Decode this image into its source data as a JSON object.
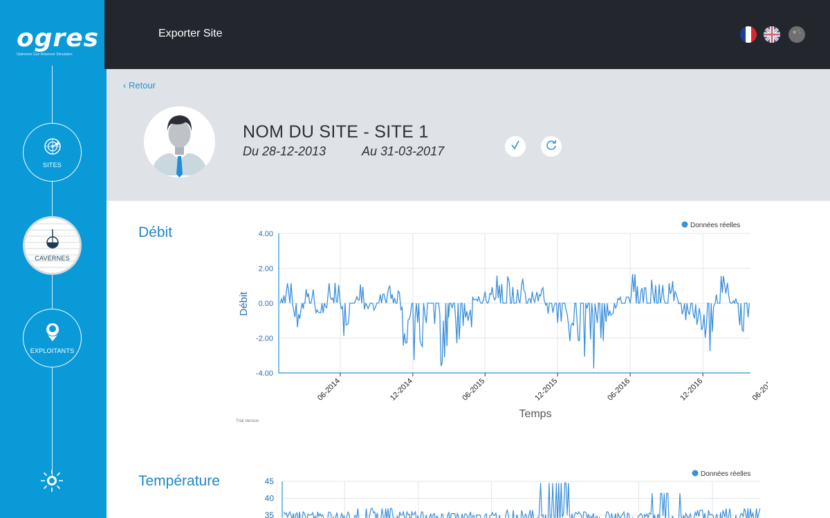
{
  "sidebar": {
    "logo_text": "ogres",
    "logo_subtitle": "Optimisée Gaz Réservoir Simulation",
    "items": [
      {
        "label": "SITES",
        "icon": "radar-icon",
        "active": false
      },
      {
        "label": "CAVERNES",
        "icon": "cavern-icon",
        "active": true
      },
      {
        "label": "EXPLOITANTS",
        "icon": "user-icon",
        "active": false
      }
    ],
    "bottom_icon": "sun-icon"
  },
  "topbar": {
    "title": "Exporter Site",
    "languages": [
      "fr-flag-icon",
      "uk-flag-icon",
      "cn-flag-icon"
    ]
  },
  "header": {
    "back_label": "Retour",
    "site_name": "NOM DU SITE - SITE 1",
    "date_from": "Du 28-12-2013",
    "date_to": "Au 31-03-2017",
    "accent": "#2a92cf"
  },
  "charts": {
    "trial_label": "Trial Version"
  },
  "chart_data": [
    {
      "type": "line",
      "section_title": "Débit",
      "title": "",
      "xlabel": "Temps",
      "ylabel": "Débit",
      "legend": "Données réelles",
      "legend_position": "top-right",
      "x_ticks": [
        "06-2014",
        "12-2014",
        "06-2015",
        "12-2015",
        "06-2016",
        "12-2016",
        "06-2017"
      ],
      "y_ticks": [
        "4.00",
        "2.00",
        "0.00",
        "-2.00",
        "-4.00"
      ],
      "ylim": [
        -4,
        4
      ],
      "xlim": [
        "2013-12-28",
        "2017-03-31"
      ],
      "grid": true,
      "color": "#3a8fdb",
      "series": [
        {
          "x": [
            "2014-01",
            "2014-02",
            "2014-03",
            "2014-04",
            "2014-05",
            "2014-06",
            "2014-07",
            "2014-08",
            "2014-09",
            "2014-10",
            "2014-11",
            "2014-12",
            "2015-01",
            "2015-02",
            "2015-03",
            "2015-04",
            "2015-05",
            "2015-06",
            "2015-07",
            "2015-08",
            "2015-09",
            "2015-10",
            "2015-11",
            "2015-12",
            "2016-01",
            "2016-02",
            "2016-03",
            "2016-04",
            "2016-05",
            "2016-06",
            "2016-07",
            "2016-08",
            "2016-09",
            "2016-10",
            "2016-11",
            "2016-12",
            "2017-01",
            "2017-02",
            "2017-03"
          ],
          "values": [
            1.2,
            -1.4,
            0.9,
            -0.6,
            1.2,
            -2.0,
            1.1,
            -0.8,
            0.8,
            1.0,
            -2.6,
            -3.7,
            -1.8,
            -3.6,
            -2.3,
            -1.5,
            0.4,
            1.0,
            1.8,
            1.9,
            1.5,
            1.4,
            -0.9,
            -1.2,
            -2.3,
            -3.4,
            -3.8,
            -1.2,
            0.6,
            1.8,
            2.2,
            1.2,
            1.3,
            -1.0,
            -1.8,
            -3.0,
            1.7,
            1.7,
            -2.4
          ]
        }
      ]
    },
    {
      "type": "line",
      "section_title": "Température",
      "title": "",
      "legend": "Données réelles",
      "legend_position": "top-right",
      "y_ticks": [
        "45",
        "40",
        "35"
      ],
      "ylim": [
        30,
        45
      ],
      "grid": true,
      "color": "#3a8fdb",
      "series": [
        {
          "x": [
            "2014-01",
            "2014-04",
            "2014-07",
            "2014-10",
            "2015-01",
            "2015-04",
            "2015-07",
            "2015-10",
            "2016-01",
            "2016-04",
            "2016-07",
            "2016-10",
            "2017-01"
          ],
          "values": [
            36,
            35.5,
            37,
            36,
            35.5,
            35,
            36.5,
            44.5,
            36,
            35.5,
            41.5,
            36.5,
            37
          ]
        }
      ]
    }
  ]
}
